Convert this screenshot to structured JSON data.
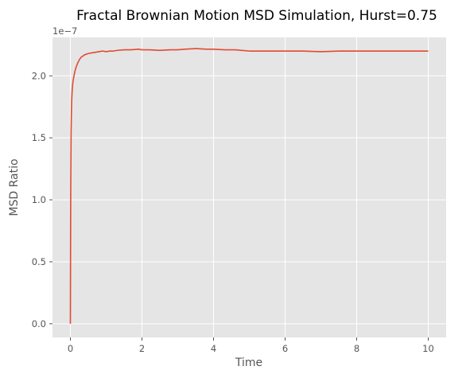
{
  "chart_data": {
    "type": "line",
    "title": "Fractal Brownian Motion MSD Simulation, Hurst=0.75",
    "xlabel": "Time",
    "ylabel": "MSD Ratio",
    "y_offset_label": "1e−7",
    "y_scale_factor": 1e-07,
    "xlim": [
      -0.5,
      10.5
    ],
    "ylim": [
      -0.11,
      2.31
    ],
    "grid": true,
    "legend": "none",
    "x_ticks": [
      {
        "value": 0,
        "label": "0"
      },
      {
        "value": 2,
        "label": "2"
      },
      {
        "value": 4,
        "label": "4"
      },
      {
        "value": 6,
        "label": "6"
      },
      {
        "value": 8,
        "label": "8"
      },
      {
        "value": 10,
        "label": "10"
      }
    ],
    "y_ticks": [
      {
        "value": 0.0,
        "label": "0.0"
      },
      {
        "value": 0.5,
        "label": "0.5"
      },
      {
        "value": 1.0,
        "label": "1.0"
      },
      {
        "value": 1.5,
        "label": "1.5"
      },
      {
        "value": 2.0,
        "label": "2.0"
      }
    ],
    "colors": {
      "background": "#e5e5e5",
      "grid": "#ffffff",
      "line": "#e24a33"
    },
    "series": [
      {
        "x": [
          0,
          0.005,
          0.01,
          0.02,
          0.03,
          0.04,
          0.05,
          0.07,
          0.1,
          0.13,
          0.16,
          0.2,
          0.25,
          0.3,
          0.35,
          0.4,
          0.5,
          0.6,
          0.7,
          0.8,
          0.9,
          1.0,
          1.1,
          1.2,
          1.3,
          1.5,
          1.7,
          1.9,
          2.0,
          2.2,
          2.5,
          2.8,
          3.0,
          3.2,
          3.5,
          3.8,
          4.0,
          4.3,
          4.6,
          5.0,
          5.5,
          6.0,
          6.5,
          7.0,
          7.5,
          8.0,
          8.5,
          9.0,
          9.5,
          10.0
        ],
        "y": [
          0.0,
          0.6,
          1.1,
          1.55,
          1.72,
          1.82,
          1.88,
          1.95,
          2.0,
          2.04,
          2.07,
          2.1,
          2.13,
          2.15,
          2.16,
          2.17,
          2.18,
          2.185,
          2.19,
          2.195,
          2.2,
          2.195,
          2.2,
          2.2,
          2.205,
          2.21,
          2.21,
          2.215,
          2.21,
          2.21,
          2.205,
          2.21,
          2.21,
          2.215,
          2.22,
          2.215,
          2.215,
          2.21,
          2.21,
          2.2,
          2.2,
          2.2,
          2.2,
          2.195,
          2.2,
          2.2,
          2.2,
          2.2,
          2.2,
          2.2
        ]
      }
    ]
  }
}
